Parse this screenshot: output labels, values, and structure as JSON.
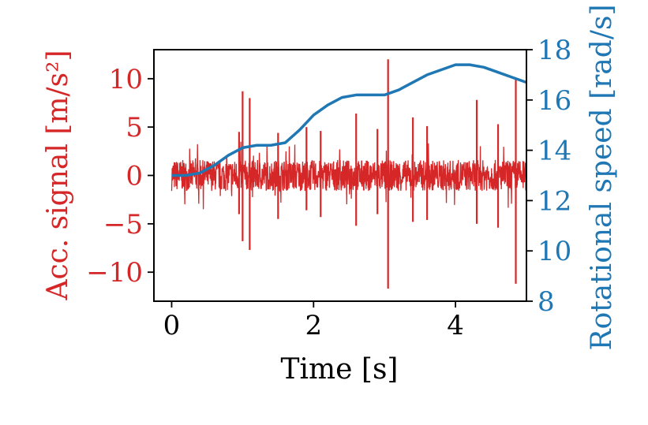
{
  "chart_data": {
    "type": "line",
    "title": "",
    "xlabel": "Time [s]",
    "ylabel": "Acc. signal [m/s²]",
    "ylabel_right": "Rotational speed [rad/s]",
    "xlim": [
      -0.25,
      5.0
    ],
    "ylim": [
      -13,
      13
    ],
    "ylim_right": [
      8,
      18
    ],
    "x_ticks": [
      0,
      2,
      4
    ],
    "x_tick_labels": [
      "0",
      "2",
      "4"
    ],
    "y_ticks": [
      10,
      5,
      0,
      -5,
      -10
    ],
    "y_tick_labels": [
      "10",
      "5",
      "0",
      "−5",
      "−10"
    ],
    "y_right_ticks": [
      18,
      16,
      14,
      12,
      10,
      8
    ],
    "y_right_tick_labels": [
      "18",
      "16",
      "14",
      "12",
      "10",
      "8"
    ],
    "grid": false,
    "colors": {
      "left_axis": "#d62728",
      "right_axis": "#1f77b4"
    },
    "series": [
      {
        "axis": "left",
        "color": "#d62728",
        "x_range": [
          0,
          5
        ],
        "noise_amplitude": 1.6,
        "spikes": [
          {
            "x": 1.0,
            "y": 8.7
          },
          {
            "x": 1.0,
            "y": -6.8
          },
          {
            "x": 1.1,
            "y": 8.0
          },
          {
            "x": 1.1,
            "y": -7.7
          },
          {
            "x": 3.05,
            "y": 12.0
          },
          {
            "x": 3.05,
            "y": -11.7
          },
          {
            "x": 4.85,
            "y": 9.9
          },
          {
            "x": 4.85,
            "y": -11.2
          },
          {
            "x": 4.3,
            "y": 7.8
          },
          {
            "x": 4.3,
            "y": -5.0
          },
          {
            "x": 2.6,
            "y": 6.4
          },
          {
            "x": 2.6,
            "y": -5.2
          },
          {
            "x": 3.4,
            "y": 6.0
          },
          {
            "x": 3.4,
            "y": -4.8
          },
          {
            "x": 0.95,
            "y": 4.5
          },
          {
            "x": 0.95,
            "y": -4.0
          },
          {
            "x": 1.9,
            "y": 5.0
          },
          {
            "x": 1.9,
            "y": -3.6
          },
          {
            "x": 4.6,
            "y": 5.3
          },
          {
            "x": 4.6,
            "y": -5.4
          },
          {
            "x": 2.1,
            "y": 4.6
          },
          {
            "x": 2.1,
            "y": -4.3
          },
          {
            "x": 3.6,
            "y": 5.1
          },
          {
            "x": 3.6,
            "y": -4.6
          },
          {
            "x": 1.5,
            "y": 4.4
          },
          {
            "x": 1.5,
            "y": -4.5
          },
          {
            "x": 2.9,
            "y": 4.8
          },
          {
            "x": 2.9,
            "y": -4.0
          }
        ]
      },
      {
        "axis": "right",
        "color": "#1f77b4",
        "x": [
          0,
          0.2,
          0.4,
          0.6,
          0.8,
          1.0,
          1.2,
          1.4,
          1.6,
          1.8,
          2.0,
          2.2,
          2.4,
          2.6,
          2.8,
          3.0,
          3.2,
          3.4,
          3.6,
          3.8,
          4.0,
          4.2,
          4.4,
          4.6,
          4.8,
          5.0
        ],
        "y": [
          13.0,
          13.0,
          13.1,
          13.4,
          13.8,
          14.1,
          14.2,
          14.2,
          14.3,
          14.8,
          15.4,
          15.8,
          16.1,
          16.2,
          16.2,
          16.2,
          16.4,
          16.7,
          17.0,
          17.2,
          17.4,
          17.4,
          17.3,
          17.1,
          16.9,
          16.7
        ]
      }
    ]
  }
}
